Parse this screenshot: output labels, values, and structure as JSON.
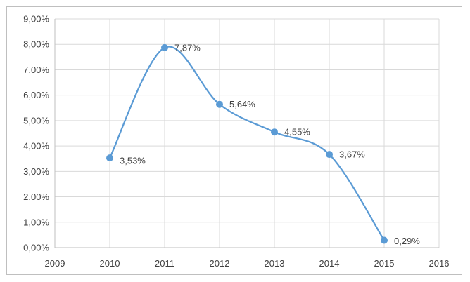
{
  "chart_data": {
    "type": "line",
    "smooth": true,
    "x": [
      2010,
      2011,
      2012,
      2013,
      2014,
      2015
    ],
    "series": [
      {
        "values": [
          3.53,
          7.87,
          5.64,
          4.55,
          3.67,
          0.29
        ],
        "color": "#5b9bd5",
        "data_labels": [
          "3,53%",
          "7,87%",
          "5,64%",
          "4,55%",
          "3,67%",
          "0,29%"
        ]
      }
    ],
    "xlim": [
      2009,
      2016
    ],
    "ylim": [
      0,
      9
    ],
    "x_ticks": [
      "2009",
      "2010",
      "2011",
      "2012",
      "2013",
      "2014",
      "2015",
      "2016"
    ],
    "y_ticks": [
      "0,00%",
      "1,00%",
      "2,00%",
      "3,00%",
      "4,00%",
      "5,00%",
      "6,00%",
      "7,00%",
      "8,00%",
      "9,00%"
    ],
    "grid": true,
    "grid_color": "#d9d9d9",
    "axis_color": "#bfbfbf",
    "title": "",
    "xlabel": "",
    "ylabel": ""
  }
}
